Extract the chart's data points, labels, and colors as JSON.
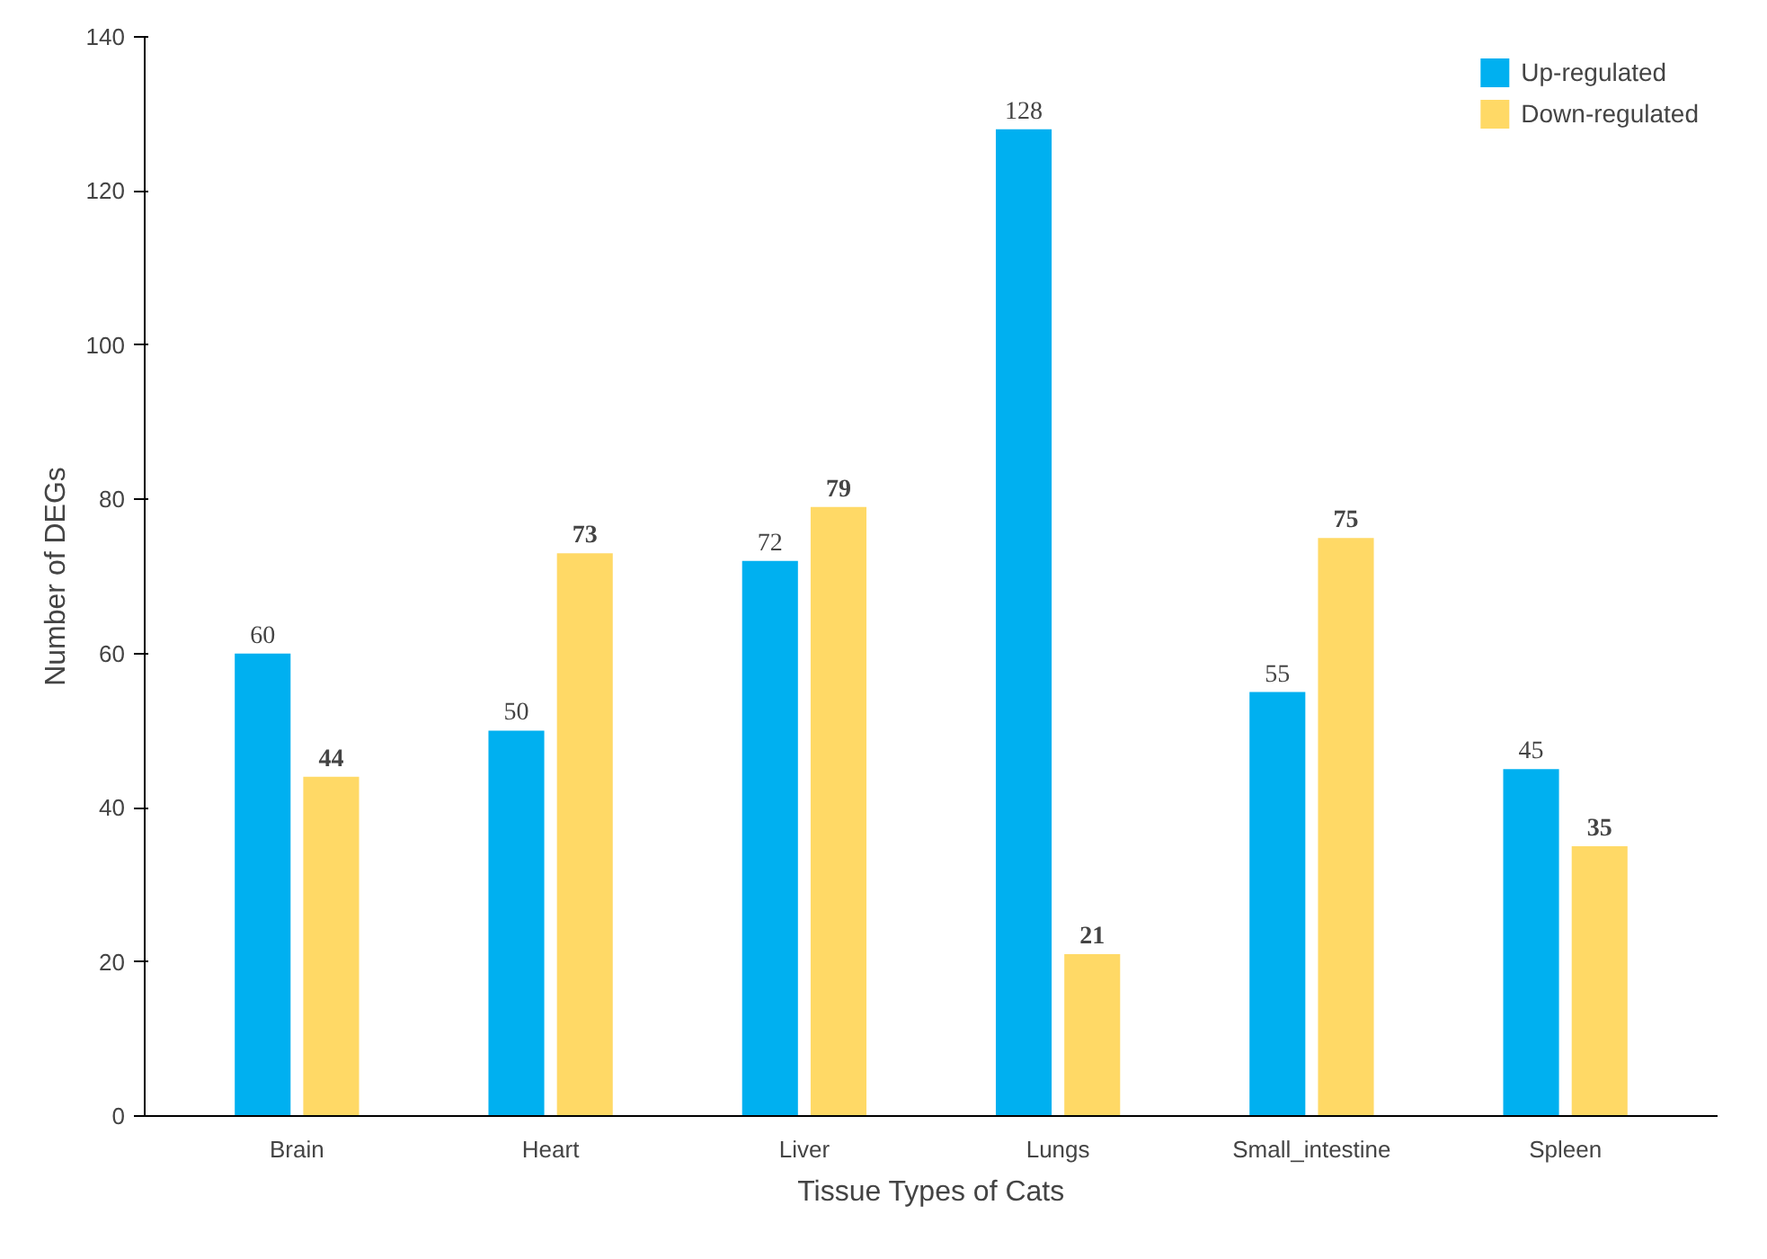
{
  "chart_data": {
    "type": "bar",
    "xlabel": "Tissue Types of Cats",
    "ylabel": "Number of DEGs",
    "categories": [
      "Brain",
      "Heart",
      "Liver",
      "Lungs",
      "Small_intestine",
      "Spleen"
    ],
    "series": [
      {
        "name": "Up-regulated",
        "color": "#00b0f0",
        "values": [
          60,
          50,
          72,
          128,
          55,
          45
        ]
      },
      {
        "name": "Down-regulated",
        "color": "#ffd966",
        "values": [
          44,
          73,
          79,
          21,
          75,
          35
        ]
      }
    ],
    "ylim": [
      0,
      140
    ],
    "yticks": [
      0,
      20,
      40,
      60,
      80,
      100,
      120,
      140
    ],
    "grid": false,
    "legend": "top right",
    "data_labels": true
  }
}
